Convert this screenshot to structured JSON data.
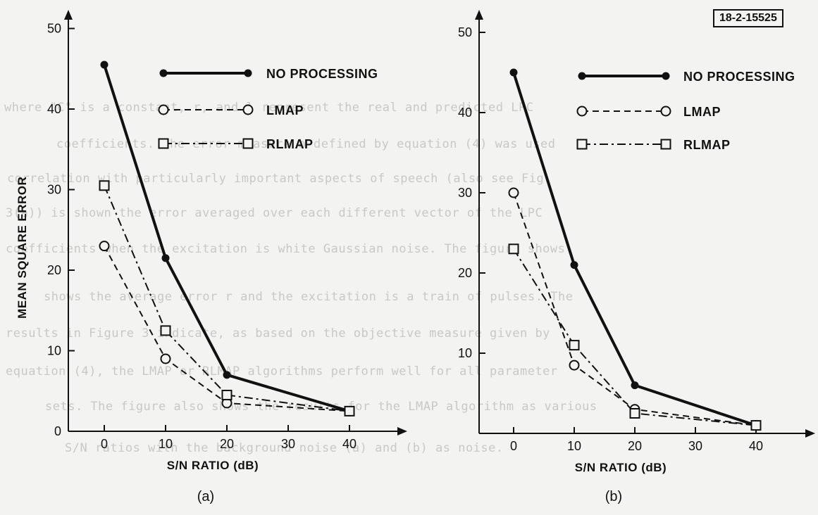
{
  "figure_id": "18-2-15525",
  "background_text": [
    "where \"C\" is a constant, r, and l represent the real and predicted LPC",
    "coefficients. The error measure b defined by equation (4) was used",
    "correlation with particularly important aspects of speech (also see Fig.",
    "3(a)) is shown the error averaged over each different vector of the LPC",
    "coefficients when the excitation is white Gaussian noise. The figure shows",
    "shows the average error r and the excitation is a train of pulses. The",
    "results in Figure 3 indicate, as based on the objective measure given by",
    "equation (4), the LMAP or RLMAP algorithms perform well for all parameter",
    "sets. The figure also shows the results for the LMAP algorithm as various",
    "S/N ratios with the background noise (a) and (b) as noise."
  ],
  "chart_data": [
    {
      "type": "line",
      "panel_label": "(a)",
      "xlabel": "S/N RATIO (dB)",
      "ylabel": "MEAN SQUARE ERROR",
      "x_ticks": [
        0,
        10,
        20,
        30,
        40
      ],
      "y_ticks": [
        0,
        10,
        20,
        30,
        40,
        50
      ],
      "xlim": [
        0,
        40
      ],
      "ylim": [
        0,
        50
      ],
      "legend_position": "top-right",
      "series": [
        {
          "name": "NO PROCESSING",
          "marker": "filled-circle",
          "line": "solid",
          "x": [
            0,
            10,
            20,
            40
          ],
          "y": [
            45.5,
            21.5,
            7,
            2.5
          ]
        },
        {
          "name": "LMAP",
          "marker": "open-circle",
          "line": "dashed",
          "x": [
            0,
            10,
            20,
            40
          ],
          "y": [
            23,
            9,
            3.5,
            2.5
          ]
        },
        {
          "name": "RLMAP",
          "marker": "open-square",
          "line": "dash-dot",
          "x": [
            0,
            10,
            20,
            40
          ],
          "y": [
            30.5,
            12.5,
            4.5,
            2.5
          ]
        }
      ]
    },
    {
      "type": "line",
      "panel_label": "(b)",
      "xlabel": "S/N RATIO (dB)",
      "ylabel": "",
      "x_ticks": [
        0,
        10,
        20,
        30,
        40
      ],
      "y_ticks": [
        10,
        20,
        30,
        40,
        50
      ],
      "xlim": [
        0,
        40
      ],
      "ylim": [
        0,
        50
      ],
      "legend_position": "top-right",
      "series": [
        {
          "name": "NO PROCESSING",
          "marker": "filled-circle",
          "line": "solid",
          "x": [
            0,
            10,
            20,
            40
          ],
          "y": [
            45,
            21,
            6,
            1
          ]
        },
        {
          "name": "LMAP",
          "marker": "open-circle",
          "line": "dashed",
          "x": [
            0,
            10,
            20,
            40
          ],
          "y": [
            30,
            8.5,
            3,
            1
          ]
        },
        {
          "name": "RLMAP",
          "marker": "open-square",
          "line": "dash-dot",
          "x": [
            0,
            10,
            20,
            40
          ],
          "y": [
            23,
            11,
            2.5,
            1
          ]
        }
      ]
    }
  ]
}
